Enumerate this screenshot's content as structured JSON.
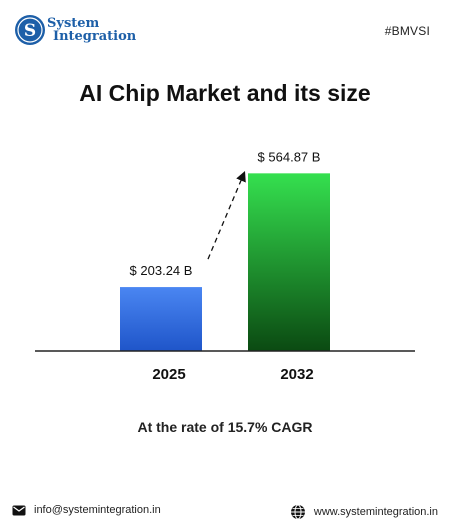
{
  "brand": {
    "name_line1": "System",
    "name_line2": "Integration",
    "hashtag": "#BMVSI"
  },
  "footer": {
    "email": "info@systemintegration.in",
    "website": "www.systemintegration.in"
  },
  "annotation": "At the rate of 15.7% CAGR",
  "colors": {
    "bar_2025_top": "#4a86f2",
    "bar_2025_bottom": "#1f55c9",
    "bar_2032_top": "#35e04f",
    "bar_2032_bottom": "#0b4a12",
    "brand_blue": "#1d5fa8"
  },
  "chart_data": {
    "type": "bar",
    "title": "AI Chip Market and its size",
    "categories": [
      "2025",
      "2032"
    ],
    "values": [
      203.24,
      564.87
    ],
    "data_labels": [
      "$ 203.24 B",
      "$ 564.87 B"
    ],
    "unit": "USD billion",
    "ylim": [
      0,
      620
    ],
    "grid": false,
    "legend": "none"
  }
}
